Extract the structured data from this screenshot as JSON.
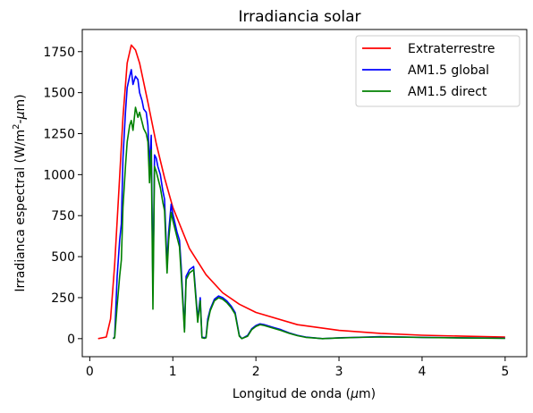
{
  "chart_data": {
    "type": "line",
    "title": "Irradiancia solar",
    "xlabel_prefix": "Longitud de onda (",
    "xlabel_mu": "μ",
    "xlabel_suffix": "m)",
    "ylabel_prefix": "Irradianca espectral (W/m",
    "ylabel_sup": "2",
    "ylabel_mid": "-",
    "ylabel_mu": "μ",
    "ylabel_suffix": "m)",
    "xlim": [
      -0.09,
      5.26
    ],
    "ylim": [
      -110,
      1885
    ],
    "xticks": [
      0,
      1,
      2,
      3,
      4,
      5
    ],
    "xtick_labels": [
      "0",
      "1",
      "2",
      "3",
      "4",
      "5"
    ],
    "yticks": [
      0,
      250,
      500,
      750,
      1000,
      1250,
      1500,
      1750
    ],
    "ytick_labels": [
      "0",
      "250",
      "500",
      "750",
      "1000",
      "1250",
      "1500",
      "1750"
    ],
    "grid": false,
    "legend_position": "top-right",
    "series": [
      {
        "name": "Extraterrestre",
        "color": "#ff0000",
        "x": [
          0.1,
          0.2,
          0.25,
          0.3,
          0.35,
          0.4,
          0.45,
          0.5,
          0.55,
          0.6,
          0.7,
          0.8,
          0.9,
          1.0,
          1.2,
          1.4,
          1.6,
          1.8,
          2.0,
          2.5,
          3.0,
          3.5,
          4.0,
          4.5,
          5.0
        ],
        "y": [
          0,
          10,
          120,
          450,
          900,
          1350,
          1680,
          1790,
          1760,
          1680,
          1440,
          1190,
          980,
          800,
          550,
          390,
          280,
          210,
          160,
          85,
          50,
          32,
          21,
          15,
          10
        ]
      },
      {
        "name": "AM1.5 global",
        "color": "#0000ff",
        "x": [
          0.28,
          0.3,
          0.33,
          0.36,
          0.38,
          0.4,
          0.43,
          0.45,
          0.48,
          0.5,
          0.52,
          0.55,
          0.58,
          0.6,
          0.63,
          0.65,
          0.68,
          0.7,
          0.72,
          0.74,
          0.76,
          0.78,
          0.8,
          0.82,
          0.85,
          0.88,
          0.9,
          0.93,
          0.95,
          0.98,
          1.0,
          1.05,
          1.08,
          1.1,
          1.12,
          1.14,
          1.16,
          1.2,
          1.25,
          1.3,
          1.33,
          1.35,
          1.38,
          1.4,
          1.42,
          1.45,
          1.5,
          1.55,
          1.6,
          1.65,
          1.7,
          1.75,
          1.8,
          1.83,
          1.9,
          1.95,
          2.0,
          2.05,
          2.1,
          2.2,
          2.3,
          2.4,
          2.5,
          2.6,
          2.7,
          2.8,
          3.0,
          3.2,
          3.5,
          3.8,
          4.0,
          4.5,
          5.0
        ],
        "y": [
          0,
          10,
          380,
          600,
          700,
          1100,
          1380,
          1530,
          1600,
          1640,
          1550,
          1600,
          1580,
          1500,
          1450,
          1400,
          1380,
          1300,
          1050,
          1240,
          300,
          1120,
          1100,
          1050,
          1000,
          900,
          850,
          450,
          650,
          820,
          760,
          650,
          600,
          450,
          250,
          60,
          380,
          420,
          440,
          120,
          250,
          10,
          5,
          10,
          120,
          180,
          240,
          260,
          250,
          230,
          200,
          160,
          20,
          0,
          20,
          60,
          80,
          90,
          85,
          70,
          55,
          35,
          20,
          10,
          5,
          0,
          5,
          8,
          12,
          10,
          8,
          5,
          3
        ]
      },
      {
        "name": "AM1.5 direct",
        "color": "#008000",
        "x": [
          0.28,
          0.3,
          0.33,
          0.36,
          0.38,
          0.4,
          0.43,
          0.45,
          0.48,
          0.5,
          0.52,
          0.55,
          0.58,
          0.6,
          0.63,
          0.65,
          0.68,
          0.7,
          0.72,
          0.74,
          0.76,
          0.78,
          0.8,
          0.82,
          0.85,
          0.88,
          0.9,
          0.93,
          0.95,
          0.98,
          1.0,
          1.05,
          1.08,
          1.1,
          1.12,
          1.14,
          1.16,
          1.2,
          1.25,
          1.3,
          1.33,
          1.35,
          1.38,
          1.4,
          1.42,
          1.45,
          1.5,
          1.55,
          1.6,
          1.65,
          1.7,
          1.75,
          1.8,
          1.83,
          1.9,
          1.95,
          2.0,
          2.05,
          2.1,
          2.2,
          2.3,
          2.4,
          2.5,
          2.6,
          2.7,
          2.8,
          3.0,
          3.2,
          3.5,
          3.8,
          4.0,
          4.5,
          5.0
        ],
        "y": [
          0,
          5,
          200,
          380,
          480,
          800,
          1050,
          1200,
          1300,
          1330,
          1270,
          1410,
          1350,
          1380,
          1320,
          1280,
          1250,
          1200,
          950,
          1150,
          180,
          1050,
          1020,
          980,
          920,
          830,
          780,
          400,
          600,
          770,
          720,
          620,
          560,
          400,
          220,
          40,
          360,
          400,
          420,
          100,
          230,
          5,
          2,
          5,
          100,
          170,
          230,
          250,
          240,
          220,
          190,
          150,
          15,
          0,
          15,
          55,
          75,
          85,
          80,
          65,
          50,
          32,
          18,
          8,
          4,
          0,
          4,
          7,
          10,
          9,
          7,
          4,
          2
        ]
      }
    ]
  }
}
